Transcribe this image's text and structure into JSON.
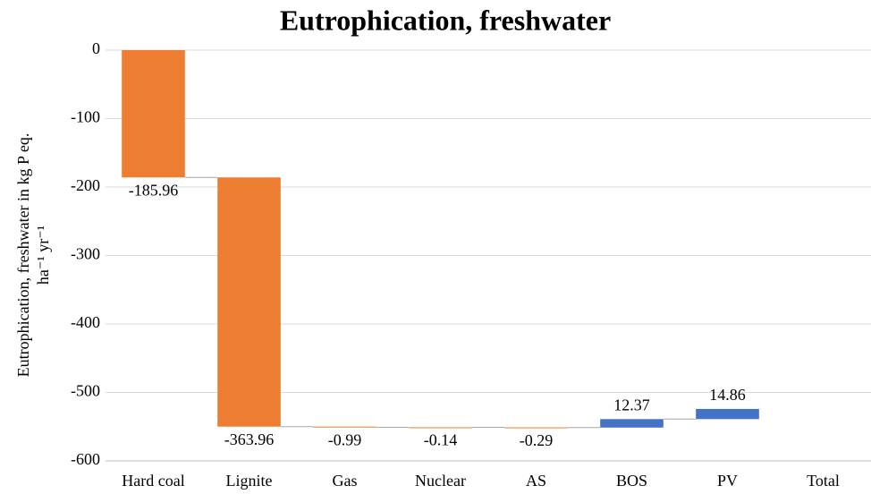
{
  "chart_data": {
    "type": "waterfall",
    "title": "Eutrophication, freshwater",
    "y_label": [
      "Eutrophication, freshwater in kg P eq.",
      "ha⁻¹ yr⁻¹"
    ],
    "categories": [
      "Hard coal",
      "Lignite",
      "Gas",
      "Nuclear",
      "AS",
      "BOS",
      "PV",
      "Total"
    ],
    "values": [
      -185.96,
      -363.96,
      -0.99,
      -0.14,
      -0.29,
      12.37,
      14.86,
      null
    ],
    "decrease_color": "#ed7d31",
    "increase_color": "#4472c4",
    "ylim": [
      -600,
      0
    ],
    "yticks": [
      -600,
      -500,
      -400,
      -300,
      -200,
      -100,
      0
    ],
    "grid": true
  }
}
